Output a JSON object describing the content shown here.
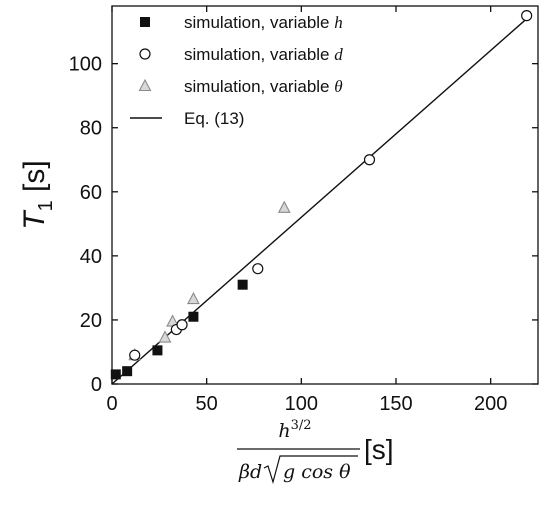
{
  "chart_data": {
    "type": "scatter",
    "xlim": [
      0,
      225
    ],
    "ylim": [
      0,
      118
    ],
    "x_ticks": [
      0,
      50,
      100,
      150,
      200
    ],
    "y_ticks": [
      0,
      20,
      40,
      60,
      80,
      100
    ],
    "x_tick_labels": [
      "0",
      "50",
      "100",
      "150",
      "200"
    ],
    "y_tick_labels": [
      "0",
      "20",
      "40",
      "60",
      "80",
      "100"
    ],
    "ylabel": {
      "main": "T",
      "sub": "1",
      "unit": "[s]"
    },
    "xlabel": {
      "numerator": "h",
      "numerator_power": "3/2",
      "denominator": "βd√(g cos θ)",
      "unit": "[s]"
    },
    "legend_position": "top-left",
    "series": [
      {
        "name": "simulation, variable h",
        "label_text": "simulation, variable ",
        "label_var": "h",
        "marker": "filled-square",
        "color": "#111111",
        "points": [
          [
            2,
            3
          ],
          [
            8,
            4
          ],
          [
            24,
            10.5
          ],
          [
            43,
            21
          ],
          [
            69,
            31
          ]
        ]
      },
      {
        "name": "simulation, variable d",
        "label_text": "simulation, variable ",
        "label_var": "d",
        "marker": "open-circle",
        "color": "#111111",
        "points": [
          [
            12,
            9
          ],
          [
            34,
            17
          ],
          [
            37,
            18.5
          ],
          [
            77,
            36
          ],
          [
            136,
            70
          ],
          [
            219,
            115
          ]
        ]
      },
      {
        "name": "simulation, variable θ",
        "label_text": "simulation, variable ",
        "label_var": "θ",
        "marker": "open-triangle",
        "color": "#8a8a8a",
        "points": [
          [
            12,
            9
          ],
          [
            28,
            14.5
          ],
          [
            32,
            19.5
          ],
          [
            43,
            26.5
          ],
          [
            91,
            55
          ]
        ]
      },
      {
        "name": "Eq. (13)",
        "label_text": "Eq. (13)",
        "label_var": "",
        "marker": "line",
        "color": "#111111",
        "points": [
          [
            0,
            0
          ],
          [
            219,
            114
          ]
        ]
      }
    ]
  }
}
